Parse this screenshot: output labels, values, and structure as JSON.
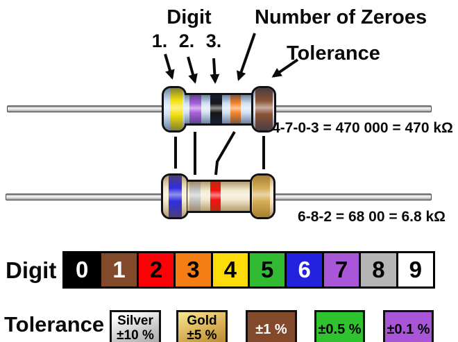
{
  "annotations": {
    "digit_title": "Digit",
    "digit_positions": "1. 2. 3.",
    "zeroes_title": "Number of Zeroes",
    "tolerance_title": "Tolerance"
  },
  "resistor_470k": {
    "formula": "4-7-0-3 = 470 000 = 470 kΩ",
    "body_color_center": "#cfe0f4",
    "body_color_edge": "#47699c",
    "bands": [
      {
        "name": "yellow",
        "meaning": "digit-4",
        "color": "#f6e000"
      },
      {
        "name": "violet",
        "meaning": "digit-7",
        "color": "#a757d8"
      },
      {
        "name": "black",
        "meaning": "digit-0",
        "color": "#0a0a0a"
      },
      {
        "name": "orange",
        "meaning": "zeroes-3",
        "color": "#f58220"
      },
      {
        "name": "brown",
        "meaning": "tolerance",
        "color": "#82492a"
      }
    ]
  },
  "resistor_6k8": {
    "formula": "6-8-2 = 68 00 = 6.8 kΩ",
    "body_color_center": "#f2e7cb",
    "body_color_edge": "#ba9b58",
    "bands": [
      {
        "name": "blue",
        "meaning": "digit-6",
        "color": "#2323dd"
      },
      {
        "name": "grey",
        "meaning": "digit-8",
        "color": "#c2c2c2"
      },
      {
        "name": "red",
        "meaning": "zeroes-2",
        "color": "#f50505"
      },
      {
        "name": "gold",
        "meaning": "tolerance",
        "color": "#d3a94e"
      }
    ]
  },
  "digit_row": {
    "label": "Digit",
    "cells": [
      {
        "digit": "0",
        "color": "#000000",
        "text": "#ffffff"
      },
      {
        "digit": "1",
        "color": "#82492a",
        "text": "#ffffff"
      },
      {
        "digit": "2",
        "color": "#fb0207",
        "text": "#000000"
      },
      {
        "digit": "3",
        "color": "#f57e14",
        "text": "#000000"
      },
      {
        "digit": "4",
        "color": "#fcdc0a",
        "text": "#000000"
      },
      {
        "digit": "5",
        "color": "#33ba33",
        "text": "#000000"
      },
      {
        "digit": "6",
        "color": "#2323dd",
        "text": "#ffffff"
      },
      {
        "digit": "7",
        "color": "#a757d8",
        "text": "#000000"
      },
      {
        "digit": "8",
        "color": "#b5b5b5",
        "text": "#000000"
      },
      {
        "digit": "9",
        "color": "#ffffff",
        "text": "#000000"
      }
    ]
  },
  "tolerance_row": {
    "label": "Tolerance",
    "boxes": [
      {
        "style": "silver",
        "lines": [
          "Silver",
          "±10 %"
        ],
        "text": "#000000"
      },
      {
        "style": "gold",
        "lines": [
          "Gold",
          "±5 %"
        ],
        "text": "#000000"
      },
      {
        "style": "brown",
        "lines": [
          "±1 %"
        ],
        "text": "#ffffff"
      },
      {
        "style": "green",
        "lines": [
          "±0.5 %"
        ],
        "text": "#000000"
      },
      {
        "style": "purple",
        "lines": [
          "±0.1 %"
        ],
        "text": "#000000"
      }
    ]
  }
}
